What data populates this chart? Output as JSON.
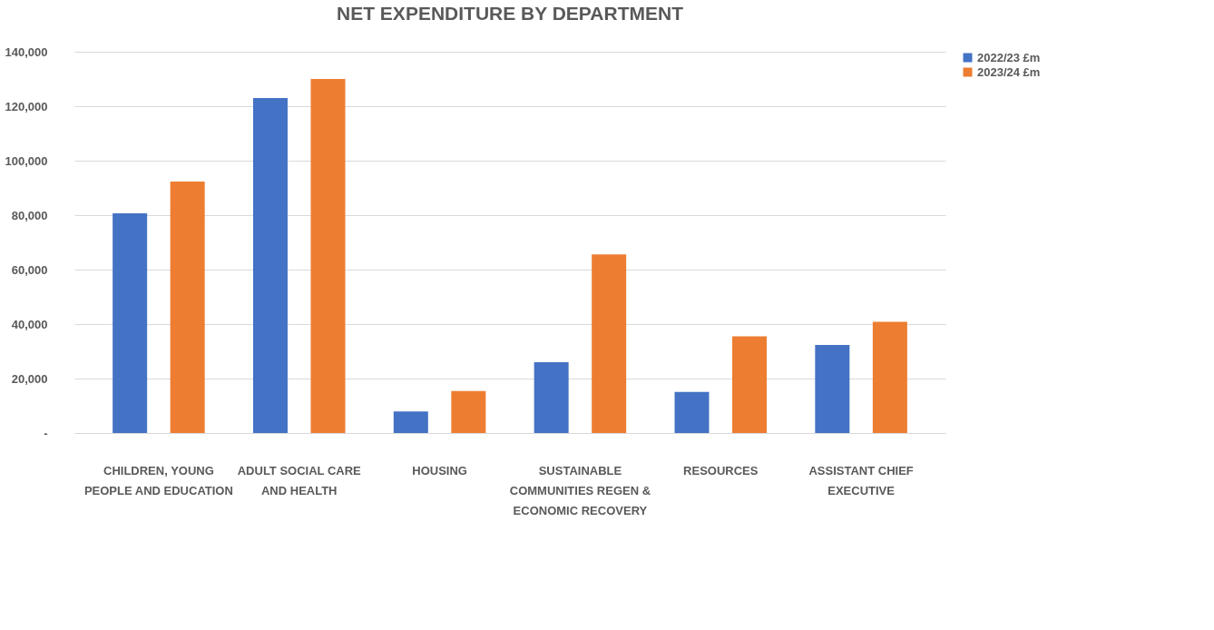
{
  "chart_data": {
    "type": "bar",
    "title": "NET EXPENDITURE BY DEPARTMENT",
    "categories": [
      "CHILDREN, YOUNG PEOPLE AND EDUCATION",
      "ADULT SOCIAL CARE AND HEALTH",
      "HOUSING",
      "SUSTAINABLE COMMUNITIES REGEN & ECONOMIC RECOVERY",
      "RESOURCES",
      "ASSISTANT CHIEF EXECUTIVE"
    ],
    "series": [
      {
        "name": "2022/23 £m",
        "color": "#4472c4",
        "values": [
          80700,
          123000,
          7900,
          26000,
          15100,
          32300
        ]
      },
      {
        "name": "2023/24 £m",
        "color": "#ed7d31",
        "values": [
          92300,
          130000,
          15400,
          65600,
          35500,
          40800
        ]
      }
    ],
    "ylim": [
      0,
      140000
    ],
    "yticks": [
      {
        "value": 0,
        "label": "-"
      },
      {
        "value": 20000,
        "label": "20,000"
      },
      {
        "value": 40000,
        "label": "40,000"
      },
      {
        "value": 60000,
        "label": "60,000"
      },
      {
        "value": 80000,
        "label": "80,000"
      },
      {
        "value": 100000,
        "label": "100,000"
      },
      {
        "value": 120000,
        "label": "120,000"
      },
      {
        "value": 140000,
        "label": "140,000"
      }
    ],
    "grid": "y",
    "legend": "right"
  }
}
